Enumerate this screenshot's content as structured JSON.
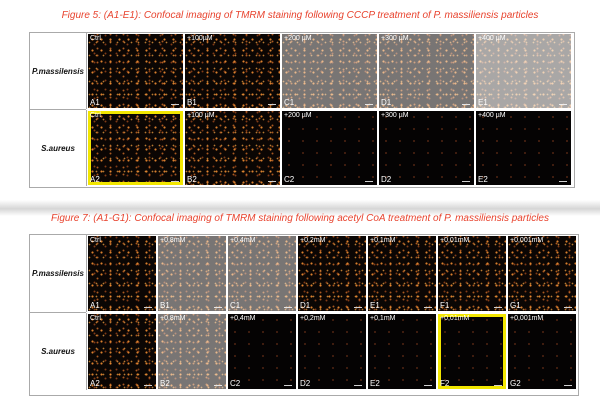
{
  "figure5": {
    "caption": "Figure 5: (A1-E1): Confocal imaging of TMRM staining following CCCP treatment of P. massiliensis particles",
    "rows": [
      {
        "label": "P.massilensis",
        "panels": [
          {
            "treatment": "Ctrl",
            "id": "A1"
          },
          {
            "treatment": "+100µM",
            "id": "B1"
          },
          {
            "treatment": "+200 µM",
            "id": "C1"
          },
          {
            "treatment": "+300 µM",
            "id": "D1"
          },
          {
            "treatment": "+400 µM",
            "id": "E1"
          }
        ]
      },
      {
        "label": "S.aureus",
        "panels": [
          {
            "treatment": "Ctrl",
            "id": "A2",
            "highlighted": true
          },
          {
            "treatment": "+100 µM",
            "id": "B2"
          },
          {
            "treatment": "+200 µM",
            "id": "C2"
          },
          {
            "treatment": "+300 µM",
            "id": "D2"
          },
          {
            "treatment": "+400 µM",
            "id": "E2"
          }
        ]
      }
    ]
  },
  "figure7": {
    "caption": "Figure 7: (A1-G1): Confocal imaging of TMRM staining following acetyl CoA treatment of P. massiliensis particles",
    "rows": [
      {
        "label": "P.massilensis",
        "panels": [
          {
            "treatment": "Ctrl",
            "id": "A1"
          },
          {
            "treatment": "+0,8mM",
            "id": "B1"
          },
          {
            "treatment": "+0,4mM",
            "id": "C1"
          },
          {
            "treatment": "+0,2mM",
            "id": "D1"
          },
          {
            "treatment": "+0,1mM",
            "id": "E1"
          },
          {
            "treatment": "+0,01mM",
            "id": "F1"
          },
          {
            "treatment": "+0,001mM",
            "id": "G1"
          }
        ]
      },
      {
        "label": "S.aureus",
        "panels": [
          {
            "treatment": "Ctrl",
            "id": "A2"
          },
          {
            "treatment": "+0,8mM",
            "id": "B2"
          },
          {
            "treatment": "+0,4mM",
            "id": "C2"
          },
          {
            "treatment": "+0,2mM",
            "id": "D2"
          },
          {
            "treatment": "+0,1mM",
            "id": "E2"
          },
          {
            "treatment": "+0,01mM",
            "id": "F2",
            "highlighted": true
          },
          {
            "treatment": "+0,001mM",
            "id": "G2"
          }
        ]
      }
    ]
  },
  "colors": {
    "caption": "#e8432e",
    "highlight": "#f2e600",
    "fluorescence": "#e8862f"
  }
}
